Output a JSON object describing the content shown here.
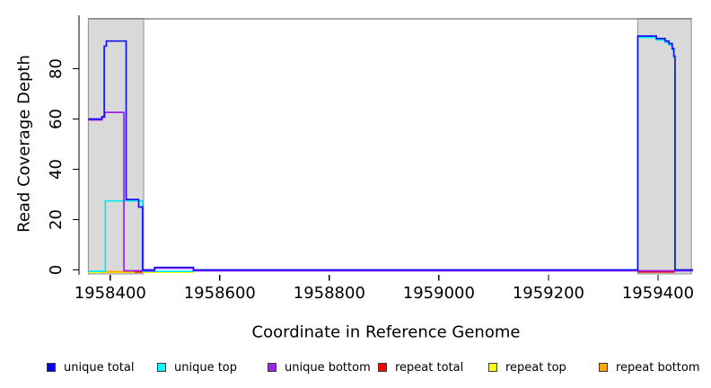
{
  "chart_data": {
    "type": "line",
    "title": "",
    "xlabel": "Coordinate in Reference Genome",
    "ylabel": "Read Coverage Depth",
    "xlim": [
      1958343,
      1959464
    ],
    "ylim": [
      0,
      102
    ],
    "x_ticks": [
      1958400,
      1958600,
      1958800,
      1959000,
      1959200,
      1959400
    ],
    "y_ticks": [
      0,
      20,
      40,
      60,
      80
    ],
    "grid": "off",
    "legend_position": "bottom",
    "repeat_regions": [
      {
        "start": 1958360,
        "end": 1958461
      },
      {
        "start": 1959363,
        "end": 1959461
      }
    ],
    "top_line_span": {
      "start": 1958360,
      "end": 1959461
    },
    "series": [
      {
        "name": "repeat_top",
        "label": "repeat top",
        "color": "#ffff00",
        "points": [
          [
            1958360,
            0
          ],
          [
            1958552,
            0
          ]
        ]
      },
      {
        "name": "repeat_bottom",
        "label": "repeat bottom",
        "color": "#ffa500",
        "points": [
          [
            1958384,
            0
          ],
          [
            1958448,
            0
          ]
        ]
      },
      {
        "name": "repeat_total",
        "label": "repeat total",
        "color": "#ee0000",
        "points": [
          [
            1958445,
            0
          ],
          [
            1958459,
            0
          ],
          [
            1958459,
            null
          ],
          [
            1959363,
            0
          ],
          [
            1959431,
            0
          ]
        ]
      },
      {
        "name": "unique_top",
        "label": "unique top",
        "color": "#00eaf0",
        "points": [
          [
            1958360,
            0
          ],
          [
            1958391,
            28
          ],
          [
            1958459,
            0
          ],
          [
            1958552,
            0
          ],
          [
            1958552,
            null
          ],
          [
            1959363,
            0
          ],
          [
            1959363,
            93
          ],
          [
            1959397,
            92
          ],
          [
            1959413,
            91
          ],
          [
            1959420,
            90
          ],
          [
            1959426,
            88
          ],
          [
            1959429,
            85
          ],
          [
            1959431,
            0
          ]
        ]
      },
      {
        "name": "unique_bottom",
        "label": "unique bottom",
        "color": "#a020f0",
        "points": [
          [
            1958360,
            60
          ],
          [
            1958385,
            61
          ],
          [
            1958390,
            63
          ],
          [
            1958425,
            0
          ],
          [
            1958481,
            1
          ],
          [
            1958552,
            0
          ],
          [
            1959464,
            0
          ]
        ]
      },
      {
        "name": "unique_total",
        "label": "unique total",
        "color": "#1414f0",
        "points": [
          [
            1958360,
            60
          ],
          [
            1958385,
            61
          ],
          [
            1958389,
            89
          ],
          [
            1958393,
            91
          ],
          [
            1958429,
            28
          ],
          [
            1958452,
            25
          ],
          [
            1958459,
            0
          ],
          [
            1958481,
            1
          ],
          [
            1958552,
            0
          ],
          [
            1959363,
            93
          ],
          [
            1959397,
            92
          ],
          [
            1959413,
            91
          ],
          [
            1959420,
            90
          ],
          [
            1959426,
            88
          ],
          [
            1959429,
            85
          ],
          [
            1959431,
            0
          ],
          [
            1959464,
            0
          ]
        ]
      }
    ],
    "legend": [
      {
        "label": "unique total",
        "color": "#0000ff"
      },
      {
        "label": "unique top",
        "color": "#00ffff"
      },
      {
        "label": "unique bottom",
        "color": "#a020f0"
      },
      {
        "label": "repeat total",
        "color": "#ff0000"
      },
      {
        "label": "repeat top",
        "color": "#ffff00"
      },
      {
        "label": "repeat bottom",
        "color": "#ffa500"
      }
    ],
    "colors": {
      "repeat_region_fill": "#d9d9d9",
      "repeat_region_border": "#8f8f8f",
      "top_line": "#8b8b8b",
      "axis": "#000000"
    }
  }
}
